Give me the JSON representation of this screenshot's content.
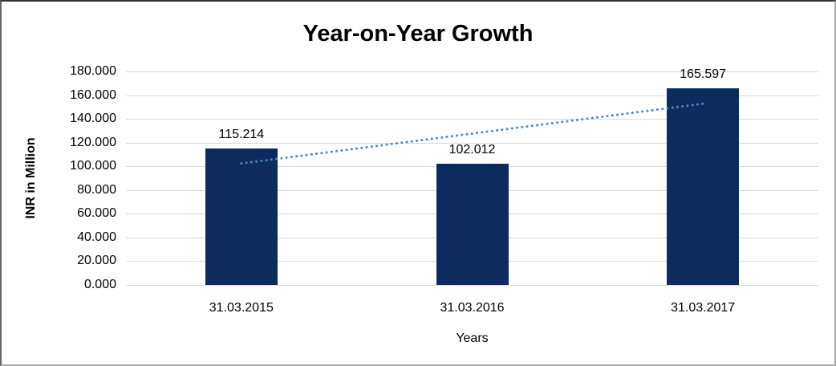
{
  "chart_data": {
    "type": "bar",
    "title": "Year-on-Year Growth",
    "xlabel": "Years",
    "ylabel": "INR in Million",
    "categories": [
      "31.03.2015",
      "31.03.2016",
      "31.03.2017"
    ],
    "values": [
      115.214,
      102.012,
      165.597
    ],
    "value_labels": [
      "115.214",
      "102.012",
      "165.597"
    ],
    "ylim": [
      0,
      180
    ],
    "ytick_values": [
      0,
      20,
      40,
      60,
      80,
      100,
      120,
      140,
      160,
      180
    ],
    "ytick_labels": [
      "0.000",
      "20.000",
      "40.000",
      "60.000",
      "80.000",
      "100.000",
      "120.000",
      "140.000",
      "160.000",
      "180.000"
    ],
    "grid": "horizontal",
    "legend": "none",
    "bar_color": "#0d2b5c",
    "gridline_color": "#d9d9d9",
    "trendline": {
      "type": "linear",
      "style": "dotted",
      "color": "#4e86c6",
      "start_value": 102.42,
      "end_value": 152.8
    }
  }
}
